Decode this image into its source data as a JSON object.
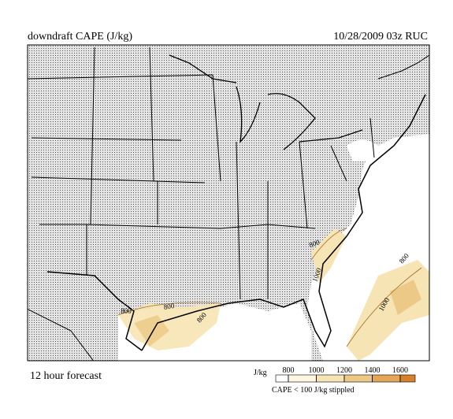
{
  "header": {
    "title": "downdraft CAPE (J/kg)",
    "datetime": "10/28/2009  03z  RUC"
  },
  "footer": {
    "forecast": "12 hour forecast"
  },
  "legend": {
    "unit": "J/kg",
    "ticks": [
      800,
      1000,
      1200,
      1400,
      1600
    ],
    "note": "CAPE < 100 J/kg stippled"
  },
  "map": {
    "contour_labels": [
      800,
      800,
      800,
      800,
      1000,
      800,
      1000
    ]
  }
}
